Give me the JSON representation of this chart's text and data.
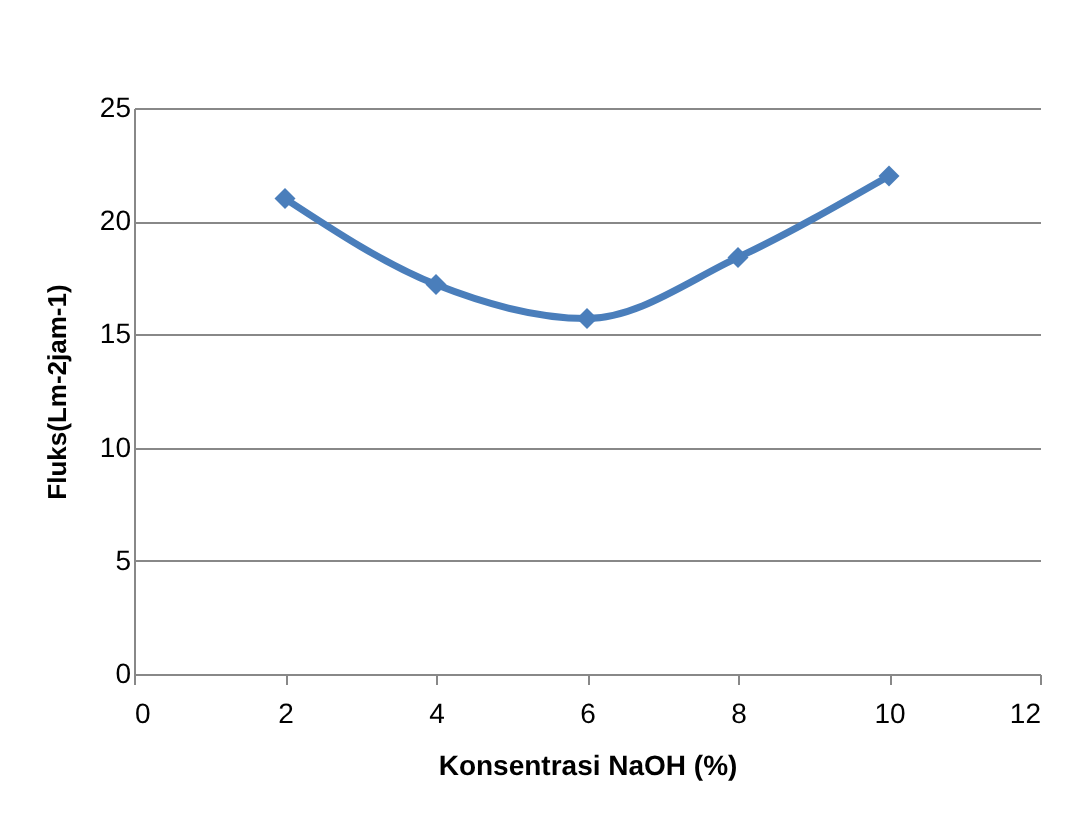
{
  "chart_data": {
    "type": "line",
    "xlabel": "Konsentrasi NaOH (%)",
    "ylabel": "Fluks(Lm-2jam-1)",
    "x": [
      2,
      4,
      6,
      8,
      10
    ],
    "series": [
      {
        "color": "#4a7ebb",
        "values": [
          21,
          17.2,
          15.7,
          18.4,
          22
        ]
      }
    ],
    "xlim": [
      0,
      12
    ],
    "xticks": [
      0,
      2,
      4,
      6,
      8,
      10,
      12
    ],
    "ylim": [
      0,
      25
    ],
    "yticks": [
      0,
      5,
      10,
      15,
      20,
      25
    ],
    "grid": "y",
    "marker": "diamond",
    "legend": false
  }
}
